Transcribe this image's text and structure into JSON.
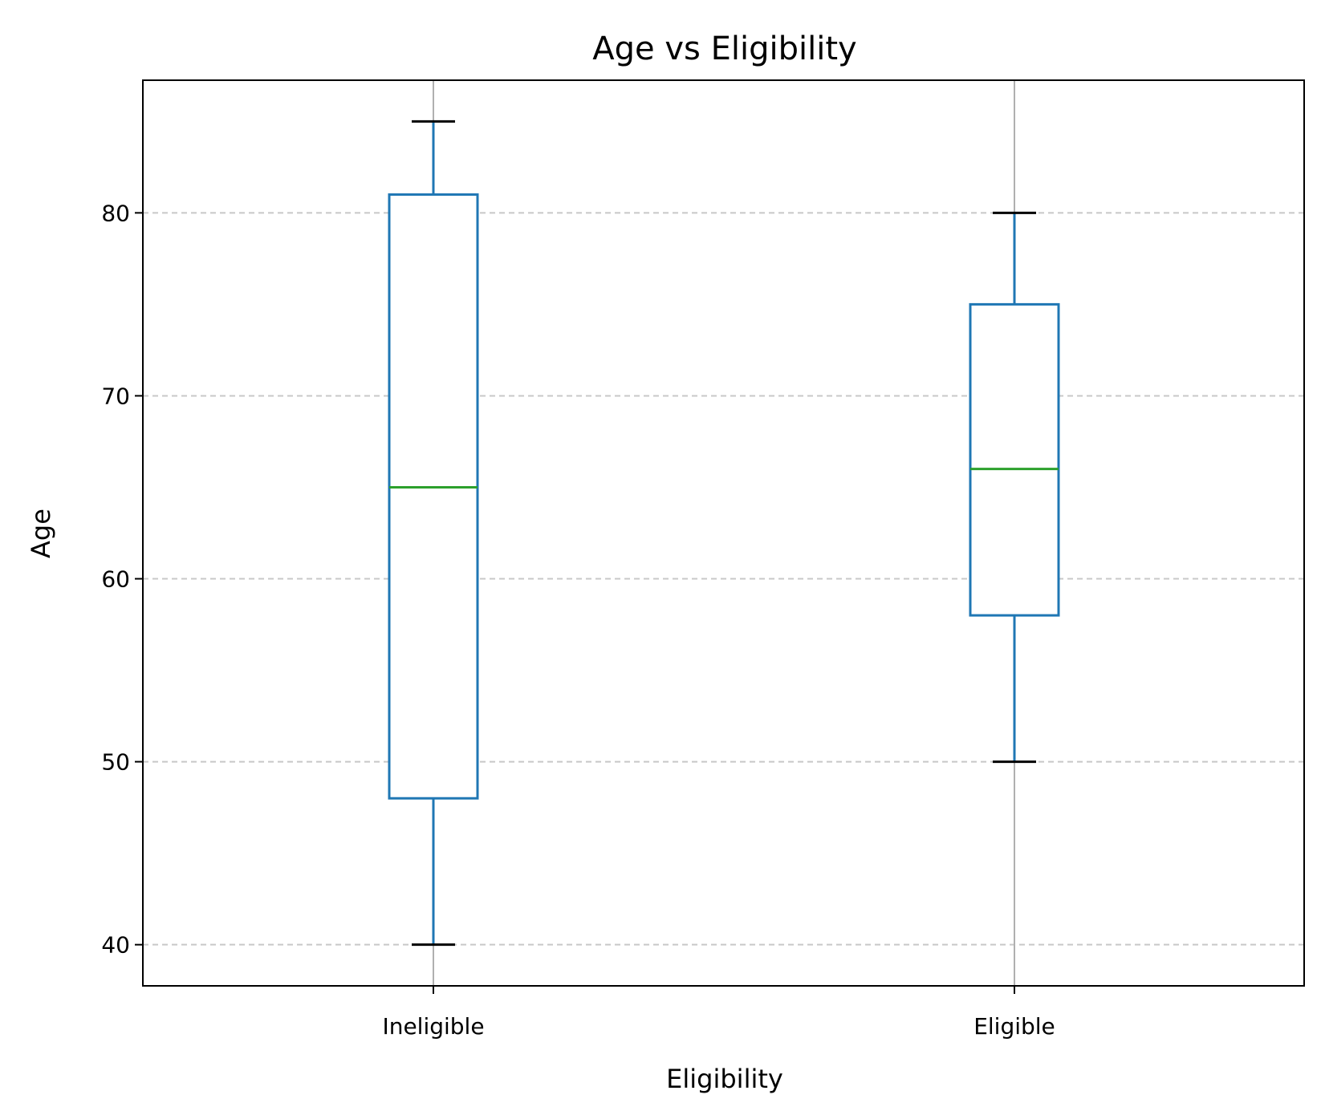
{
  "chart_data": {
    "type": "box",
    "title": "Age vs Eligibility",
    "xlabel": "Eligibility",
    "ylabel": "Age",
    "categories": [
      "Ineligible",
      "Eligible"
    ],
    "boxes": [
      {
        "category": "Ineligible",
        "whisker_low": 40,
        "q1": 48,
        "median": 65,
        "q3": 81,
        "whisker_high": 85
      },
      {
        "category": "Eligible",
        "whisker_low": 50,
        "q1": 58,
        "median": 66,
        "q3": 75,
        "whisker_high": 80
      }
    ],
    "ylim": [
      37.75,
      87.25
    ],
    "yticks": [
      40,
      50,
      60,
      70,
      80
    ],
    "grid": {
      "horizontal": "dashed",
      "vertical": "solid"
    },
    "colors": {
      "box": "#1f77b4",
      "median": "#2ca02c",
      "cap": "#000000",
      "grid_h": "#c8c8c8",
      "grid_v": "#b0b0b0"
    }
  }
}
